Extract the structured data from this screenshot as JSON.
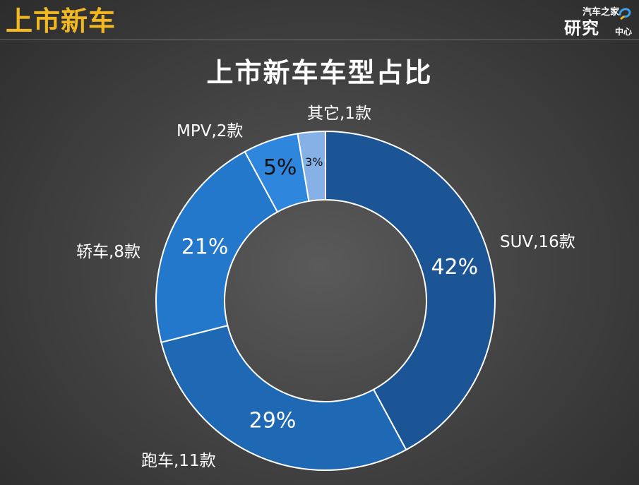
{
  "header": {
    "title": "上市新车"
  },
  "logo": {
    "line1": "汽车之家",
    "line2": "研究",
    "line3": "中心"
  },
  "chart_data": {
    "type": "pie",
    "title": "上市新车车型占比",
    "categories": [
      "SUV",
      "跑车",
      "轿车",
      "MPV",
      "其它"
    ],
    "values": [
      16,
      11,
      8,
      2,
      1
    ],
    "percent_labels": [
      "42%",
      "29%",
      "21%",
      "5%",
      "3%"
    ],
    "category_labels": [
      "SUV,16款",
      "跑车,11款",
      "轿车,8款",
      "MPV,2款",
      "其它,1款"
    ],
    "colors": [
      "#1c5596",
      "#1f69b4",
      "#2478cc",
      "#2e86dd",
      "#86b1e6"
    ],
    "start_angle_deg": 0,
    "direction": "clockwise",
    "donut": true
  }
}
